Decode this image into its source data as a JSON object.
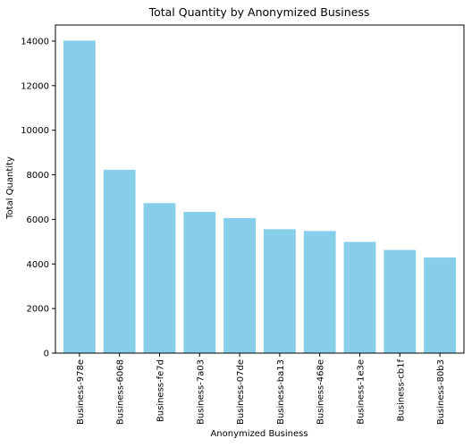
{
  "chart_data": {
    "type": "bar",
    "title": "Total Quantity by Anonymized Business",
    "xlabel": "Anonymized Business",
    "ylabel": "Total Quantity",
    "categories": [
      "Business-978e",
      "Business-6068",
      "Business-fe7d",
      "Business-7a03",
      "Business-07de",
      "Business-ba13",
      "Business-468e",
      "Business-1e3e",
      "Business-cb1f",
      "Business-80b3"
    ],
    "values": [
      14020,
      8230,
      6730,
      6340,
      6060,
      5560,
      5480,
      4990,
      4630,
      4290
    ],
    "ylim": [
      0,
      14720
    ],
    "yticks": [
      0,
      2000,
      4000,
      6000,
      8000,
      10000,
      12000,
      14000
    ],
    "bar_color": "#87ceeb",
    "grid": false,
    "legend": "none"
  }
}
